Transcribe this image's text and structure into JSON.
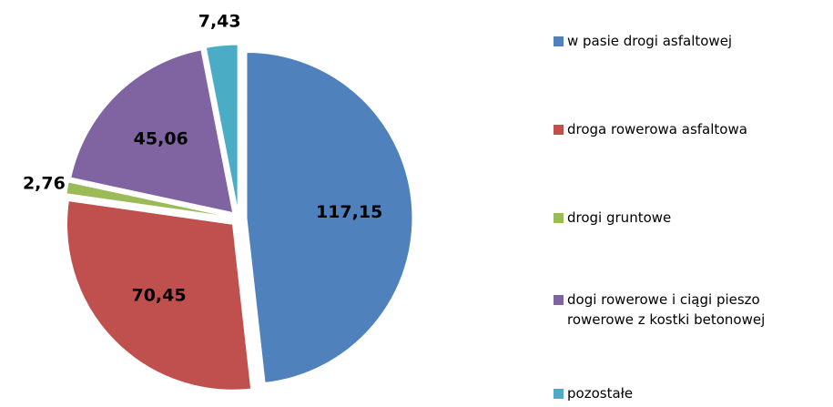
{
  "chart_data": {
    "type": "pie",
    "categories": [
      "w pasie drogi asfaltowej",
      "droga rowerowa asfaltowa",
      "drogi gruntowe",
      "dogi rowerowe i ciągi pieszo rowerowe z kostki betonowej",
      "pozostałe"
    ],
    "values": [
      117.15,
      70.45,
      2.76,
      45.06,
      7.43
    ],
    "value_labels": [
      "117,15",
      "70,45",
      "2,76",
      "45,06",
      "7,43"
    ],
    "colors": [
      "#4f81bd",
      "#c0504d",
      "#9bbb59",
      "#8064a2",
      "#4bacc6"
    ],
    "legend": "right"
  }
}
